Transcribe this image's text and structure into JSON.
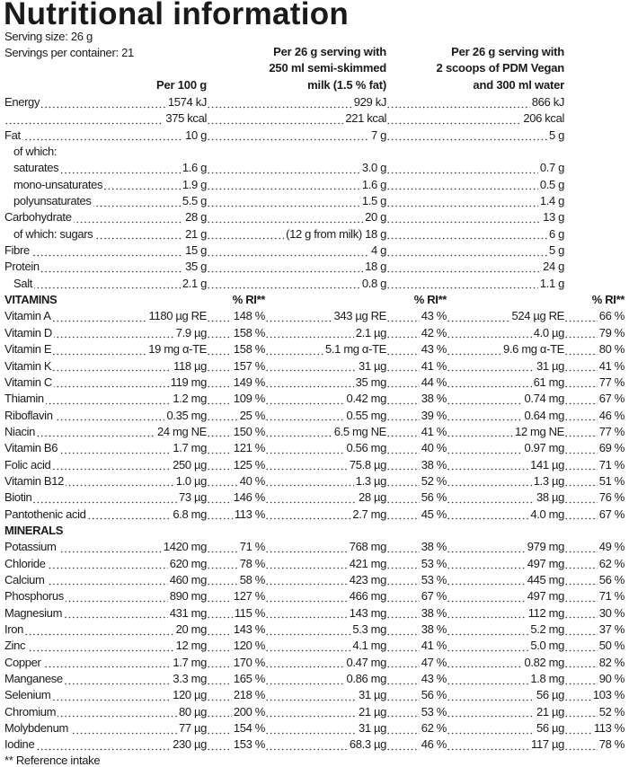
{
  "title": "Nutritional information",
  "serving_size": "Serving size: 26 g",
  "servings_per_container": "Servings per container: 21",
  "headers": {
    "col1": "Per 100 g",
    "col2": [
      "Per 26 g serving with",
      "250 ml semi-skimmed",
      "milk (1.5 % fat)"
    ],
    "col3": [
      "Per 26 g serving with",
      "2 scoops of PDM Vegan",
      "and 300 ml water"
    ]
  },
  "nutrients": [
    {
      "label": "Energy",
      "v1": "1574 kJ",
      "v2": "929 kJ",
      "v3": "866 kJ"
    },
    {
      "label": "",
      "v1": "375 kcal",
      "v2": "221 kcal",
      "v3": "206 kcal"
    },
    {
      "label": "Fat",
      "v1": "10 g",
      "v2": "7 g",
      "v3": "5 g"
    },
    {
      "label": "of which:",
      "v1": "",
      "v2": "",
      "v3": "",
      "nodots": true,
      "indent": true
    },
    {
      "label": "saturates",
      "v1": "1.6 g",
      "v2": "3.0 g",
      "v3": "0.7 g",
      "indent": true
    },
    {
      "label": "mono-unsaturates",
      "v1": "1.9 g",
      "v2": "1.6 g",
      "v3": "0.5 g",
      "indent": true
    },
    {
      "label": "polyunsaturates",
      "v1": "5.5 g",
      "v2": "1.5 g",
      "v3": "1.4 g",
      "indent": true
    },
    {
      "label": "Carbohydrate",
      "v1": "28 g",
      "v2": "20 g",
      "v3": "13 g"
    },
    {
      "label": "of which: sugars",
      "v1": "21 g",
      "v2": "(12 g from milk) 18 g",
      "v3": "6 g",
      "indent": true
    },
    {
      "label": "Fibre",
      "v1": "15 g",
      "v2": "4 g",
      "v3": "5 g"
    },
    {
      "label": "Protein",
      "v1": "35 g",
      "v2": "18 g",
      "v3": "24 g"
    },
    {
      "label": "Salt",
      "v1": "2.1 g",
      "v2": "0.8 g",
      "v3": "1.1 g",
      "indent": true
    }
  ],
  "vitamins": {
    "heading": "VITAMINS",
    "ri_label": "% RI**",
    "rows": [
      [
        "Vitamin A",
        "1180 µg RE",
        "148 %",
        "343 µg RE",
        "43 %",
        "524 µg RE",
        "66 %"
      ],
      [
        "Vitamin D",
        "7.9 µg",
        "158 %",
        "2.1 µg",
        "42 %",
        "4.0 µg",
        "79 %"
      ],
      [
        "Vitamin E",
        "19 mg α-TE",
        "158 %",
        "5.1 mg α-TE",
        "43 %",
        "9.6 mg α-TE",
        "80 %"
      ],
      [
        "Vitamin K",
        "118 µg",
        "157 %",
        "31 µg",
        "41 %",
        "31 µg",
        "41 %"
      ],
      [
        "Vitamin C",
        "119 mg",
        "149 %",
        "35 mg",
        "44 %",
        "61 mg",
        "77 %"
      ],
      [
        "Thiamin",
        "1.2 mg",
        "109 %",
        "0.42 mg",
        "38 %",
        "0.74 mg",
        "67 %"
      ],
      [
        "Riboflavin",
        "0.35 mg",
        "25 %",
        "0.55 mg",
        "39 %",
        "0.64 mg",
        "46 %"
      ],
      [
        "Niacin",
        "24 mg NE",
        "150 %",
        "6.5 mg NE",
        "41 %",
        "12 mg NE",
        "77 %"
      ],
      [
        "Vitamin B6",
        "1.7 mg",
        "121 %",
        "0.56 mg",
        "40 %",
        "0.97 mg",
        "69 %"
      ],
      [
        "Folic acid",
        "250 µg",
        "125 %",
        "75.8 µg",
        "38 %",
        "141 µg",
        "71 %"
      ],
      [
        "Vitamin B12",
        "1.0 µg",
        "40 %",
        "1.3 µg",
        "52 %",
        "1.3 µg",
        "51 %"
      ],
      [
        "Biotin",
        "73 µg",
        "146 %",
        "28 µg",
        "56 %",
        "38 µg",
        "76 %"
      ],
      [
        "Pantothenic acid",
        "6.8 mg",
        "113 %",
        "2.7 mg",
        "45 %",
        "4.0 mg",
        "67 %"
      ]
    ]
  },
  "minerals": {
    "heading": "MINERALS",
    "rows": [
      [
        "Potassium",
        "1420 mg",
        "71 %",
        "768 mg",
        "38 %",
        "979 mg",
        "49 %"
      ],
      [
        "Chloride",
        "620 mg",
        "78 %",
        "421 mg",
        "53 %",
        "497 mg",
        "62 %"
      ],
      [
        "Calcium",
        "460 mg",
        "58 %",
        "423 mg",
        "53 %",
        "445 mg",
        "56 %"
      ],
      [
        "Phosphorus",
        "890 mg",
        "127 %",
        "466 mg",
        "67 %",
        "497 mg",
        "71 %"
      ],
      [
        "Magnesium",
        "431 mg",
        "115 %",
        "143 mg",
        "38 %",
        "112 mg",
        "30 %"
      ],
      [
        "Iron",
        "20 mg",
        "143 %",
        "5.3 mg",
        "38 %",
        "5.2 mg",
        "37 %"
      ],
      [
        "Zinc",
        "12 mg",
        "120 %",
        "4.1 mg",
        "41 %",
        "5.0 mg",
        "50 %"
      ],
      [
        "Copper",
        "1.7 mg",
        "170 %",
        "0.47 mg",
        "47 %",
        "0.82 mg",
        "82 %"
      ],
      [
        "Manganese",
        "3.3 mg",
        "165 %",
        "0.86 mg",
        "43 %",
        "1.8 mg",
        "90 %"
      ],
      [
        "Selenium",
        "120 µg",
        "218 %",
        "31 µg",
        "56 %",
        "56 µg",
        "103 %"
      ],
      [
        "Chromium",
        "80 µg",
        "200 %",
        "21 µg",
        "53 %",
        "21 µg",
        "52 %"
      ],
      [
        "Molybdenum",
        "77 µg",
        "154 %",
        "31 µg",
        "62 %",
        "56 µg",
        "113 %"
      ],
      [
        "Iodine",
        "230 µg",
        "153 %",
        "68.3 µg",
        "46 %",
        "117 µg",
        "78 %"
      ]
    ]
  },
  "footnote": "** Reference intake"
}
